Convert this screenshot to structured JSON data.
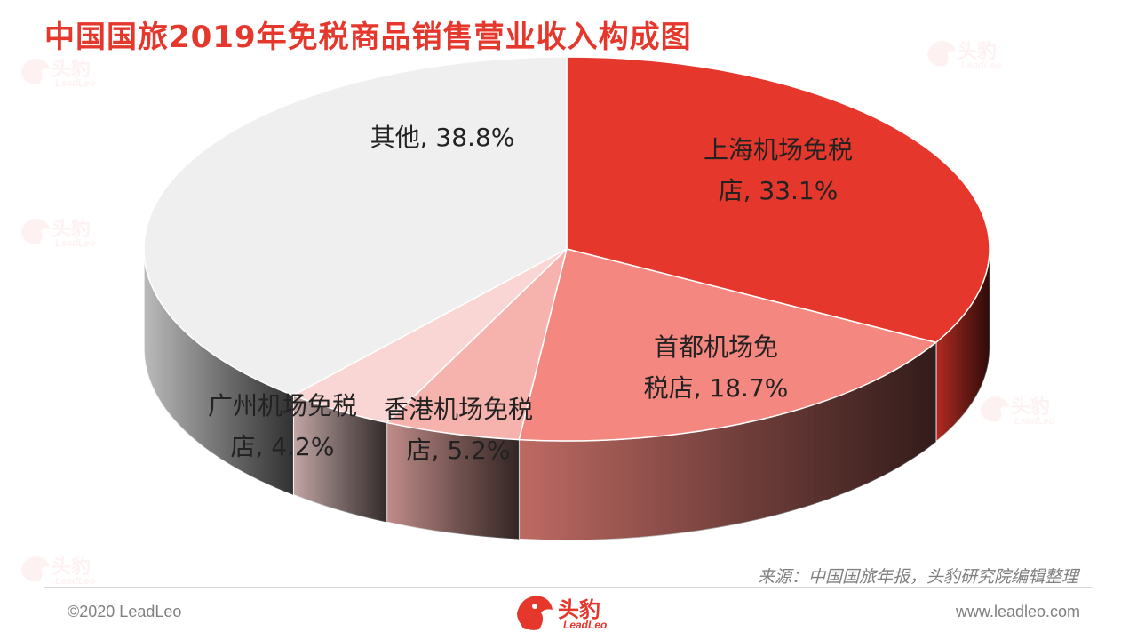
{
  "page": {
    "title": "中国国旅2019年免税商品销售营业收入构成图",
    "source": "来源：中国国旅年报，头豹研究院编辑整理",
    "copyright": "©2020 LeadLeo",
    "website": "www.leadleo.com",
    "logo": {
      "name": "头豹",
      "subtitle": "LeadLeo"
    }
  },
  "chart_data": {
    "type": "pie",
    "title": "中国国旅2019年免税商品销售营业收入构成图",
    "slices": [
      {
        "name": "上海机场免税店",
        "value": 33.1,
        "label_lines": [
          "上海机场免税",
          "店, 33.1%"
        ],
        "color": "#e5372b"
      },
      {
        "name": "首都机场免税店",
        "value": 18.7,
        "label_lines": [
          "首都机场免",
          "税店, 18.7%"
        ],
        "color": "#f4877f"
      },
      {
        "name": "香港机场免税店",
        "value": 5.2,
        "label_lines": [
          "香港机场免税",
          "店, 5.2%"
        ],
        "color": "#f6b3ae"
      },
      {
        "name": "广州机场免税店",
        "value": 4.2,
        "label_lines": [
          "广州机场免税",
          "店, 4.2%"
        ],
        "color": "#f9d6d3"
      },
      {
        "name": "其他",
        "value": 38.8,
        "label_lines": [
          "其他, 38.8%"
        ],
        "color": "#efefef"
      }
    ],
    "start_angle_deg": -90,
    "direction": "clockwise",
    "style": "3d"
  }
}
